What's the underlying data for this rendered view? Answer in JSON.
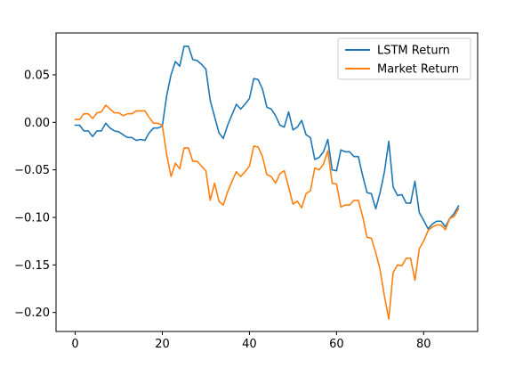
{
  "chart_data": {
    "type": "line",
    "title": "",
    "xlabel": "",
    "ylabel": "",
    "xlim": [
      -4.4,
      92.4
    ],
    "ylim": [
      -0.22,
      0.094
    ],
    "x_ticks": [
      0,
      20,
      40,
      60,
      80
    ],
    "x_tick_labels": [
      "0",
      "20",
      "40",
      "60",
      "80"
    ],
    "y_ticks": [
      -0.2,
      -0.15,
      -0.1,
      -0.05,
      0.0,
      0.05
    ],
    "y_tick_labels": [
      "−0.20",
      "−0.15",
      "−0.10",
      "−0.05",
      "0.00",
      "0.05"
    ],
    "grid": false,
    "legend_position": "top-right",
    "x": [
      0,
      1,
      2,
      3,
      4,
      5,
      6,
      7,
      8,
      9,
      10,
      11,
      12,
      13,
      14,
      15,
      16,
      17,
      18,
      19,
      20,
      21,
      22,
      23,
      24,
      25,
      26,
      27,
      28,
      29,
      30,
      31,
      32,
      33,
      34,
      35,
      36,
      37,
      38,
      39,
      40,
      41,
      42,
      43,
      44,
      45,
      46,
      47,
      48,
      49,
      50,
      51,
      52,
      53,
      54,
      55,
      56,
      57,
      58,
      59,
      60,
      61,
      62,
      63,
      64,
      65,
      66,
      67,
      68,
      69,
      70,
      71,
      72,
      73,
      74,
      75,
      76,
      77,
      78,
      79,
      80,
      81,
      82,
      83,
      84,
      85,
      86,
      87,
      88
    ],
    "series": [
      {
        "name": "LSTM Return",
        "color": "#1f77b4",
        "values": [
          -0.003,
          -0.003,
          -0.009,
          -0.009,
          -0.015,
          -0.009,
          -0.009,
          -0.001,
          -0.006,
          -0.009,
          -0.01,
          -0.013,
          -0.016,
          -0.016,
          -0.019,
          -0.018,
          -0.019,
          -0.011,
          -0.006,
          -0.006,
          -0.004,
          0.028,
          0.05,
          0.064,
          0.059,
          0.08,
          0.08,
          0.066,
          0.065,
          0.061,
          0.056,
          0.023,
          0.006,
          -0.011,
          -0.017,
          -0.003,
          0.008,
          0.019,
          0.014,
          0.019,
          0.025,
          0.046,
          0.045,
          0.035,
          0.016,
          0.014,
          0.007,
          -0.003,
          -0.005,
          0.011,
          -0.008,
          -0.005,
          0.002,
          -0.013,
          -0.016,
          -0.039,
          -0.037,
          -0.031,
          -0.018,
          -0.05,
          -0.051,
          -0.029,
          -0.031,
          -0.031,
          -0.036,
          -0.036,
          -0.056,
          -0.074,
          -0.075,
          -0.091,
          -0.074,
          -0.052,
          -0.02,
          -0.068,
          -0.077,
          -0.076,
          -0.085,
          -0.085,
          -0.062,
          -0.095,
          -0.103,
          -0.112,
          -0.107,
          -0.104,
          -0.104,
          -0.11,
          -0.101,
          -0.096,
          -0.088
        ]
      },
      {
        "name": "Market Return",
        "color": "#ff7f0e",
        "values": [
          0.003,
          0.003,
          0.009,
          0.009,
          0.004,
          0.01,
          0.011,
          0.018,
          0.014,
          0.01,
          0.01,
          0.007,
          0.009,
          0.009,
          0.012,
          0.012,
          0.012,
          0.005,
          -0.001,
          -0.001,
          -0.003,
          -0.034,
          -0.057,
          -0.043,
          -0.049,
          -0.027,
          -0.027,
          -0.041,
          -0.041,
          -0.046,
          -0.051,
          -0.082,
          -0.064,
          -0.083,
          -0.087,
          -0.073,
          -0.062,
          -0.052,
          -0.057,
          -0.052,
          -0.046,
          -0.025,
          -0.026,
          -0.036,
          -0.055,
          -0.057,
          -0.064,
          -0.054,
          -0.051,
          -0.068,
          -0.086,
          -0.083,
          -0.09,
          -0.075,
          -0.072,
          -0.048,
          -0.05,
          -0.044,
          -0.03,
          -0.064,
          -0.065,
          -0.089,
          -0.087,
          -0.087,
          -0.082,
          -0.082,
          -0.099,
          -0.121,
          -0.122,
          -0.137,
          -0.155,
          -0.183,
          -0.207,
          -0.158,
          -0.15,
          -0.151,
          -0.143,
          -0.143,
          -0.166,
          -0.133,
          -0.125,
          -0.114,
          -0.11,
          -0.108,
          -0.108,
          -0.113,
          -0.101,
          -0.099,
          -0.091
        ]
      }
    ]
  }
}
